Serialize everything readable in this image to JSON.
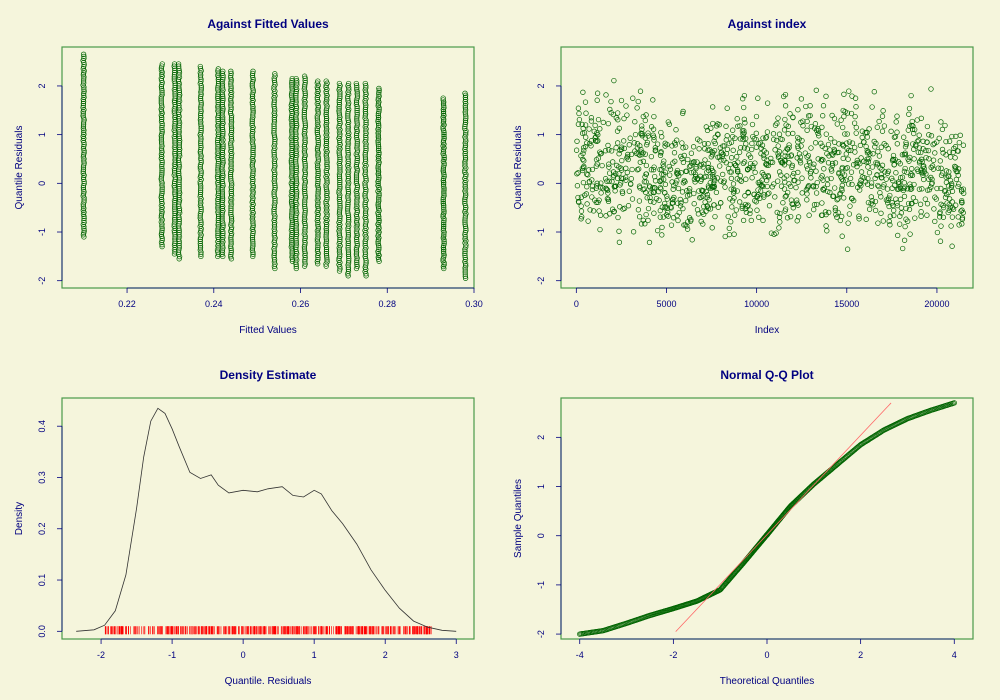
{
  "colors": {
    "background": "#f5f5dc",
    "text": "#000080",
    "frame": "#4a9a4a",
    "points": "#006400",
    "rug": "#ff0000",
    "qqline": "#ff6666",
    "density": "#333333"
  },
  "chart_data": [
    {
      "id": "fitted",
      "type": "scatter",
      "title": "Against Fitted Values",
      "xlabel": "Fitted Values",
      "ylabel": "Quantile Residuals",
      "xlim": [
        0.205,
        0.3
      ],
      "ylim": [
        -2.15,
        2.8
      ],
      "xticks": [
        0.22,
        0.24,
        0.26,
        0.28,
        0.3
      ],
      "xtick_labels": [
        "0.22",
        "0.24",
        "0.26",
        "0.28",
        "0.30"
      ],
      "yticks": [
        -2,
        -1,
        0,
        1,
        2
      ],
      "ytick_labels": [
        "-2",
        "-1",
        "0",
        "1",
        "2"
      ],
      "columns": [
        {
          "x": 0.21,
          "ymin": -1.1,
          "ymax": 2.65
        },
        {
          "x": 0.228,
          "ymin": -1.3,
          "ymax": 2.45
        },
        {
          "x": 0.231,
          "ymin": -1.45,
          "ymax": 2.45
        },
        {
          "x": 0.232,
          "ymin": -1.55,
          "ymax": 2.45
        },
        {
          "x": 0.237,
          "ymin": -1.5,
          "ymax": 2.4
        },
        {
          "x": 0.241,
          "ymin": -1.5,
          "ymax": 2.35
        },
        {
          "x": 0.242,
          "ymin": -1.5,
          "ymax": 2.3
        },
        {
          "x": 0.244,
          "ymin": -1.55,
          "ymax": 2.3
        },
        {
          "x": 0.249,
          "ymin": -1.5,
          "ymax": 2.3
        },
        {
          "x": 0.254,
          "ymin": -1.75,
          "ymax": 2.25
        },
        {
          "x": 0.258,
          "ymin": -1.6,
          "ymax": 2.15
        },
        {
          "x": 0.259,
          "ymin": -1.75,
          "ymax": 2.15
        },
        {
          "x": 0.261,
          "ymin": -1.7,
          "ymax": 2.2
        },
        {
          "x": 0.264,
          "ymin": -1.65,
          "ymax": 2.1
        },
        {
          "x": 0.266,
          "ymin": -1.7,
          "ymax": 2.1
        },
        {
          "x": 0.269,
          "ymin": -1.8,
          "ymax": 2.05
        },
        {
          "x": 0.271,
          "ymin": -1.9,
          "ymax": 2.05
        },
        {
          "x": 0.273,
          "ymin": -1.75,
          "ymax": 2.05
        },
        {
          "x": 0.275,
          "ymin": -1.9,
          "ymax": 2.05
        },
        {
          "x": 0.278,
          "ymin": -1.6,
          "ymax": 1.95
        },
        {
          "x": 0.293,
          "ymin": -1.75,
          "ymax": 1.75
        },
        {
          "x": 0.298,
          "ymin": -1.95,
          "ymax": 1.85
        }
      ]
    },
    {
      "id": "index",
      "type": "scatter",
      "title": "Against  index",
      "xlabel": "Index",
      "ylabel": "Quantile Residuals",
      "xlim": [
        -850,
        22000
      ],
      "ylim": [
        -2.15,
        2.8
      ],
      "xticks": [
        0,
        5000,
        10000,
        15000,
        20000
      ],
      "xtick_labels": [
        "0",
        "5000",
        "10000",
        "15000",
        "20000"
      ],
      "yticks": [
        -2,
        -1,
        0,
        1,
        2
      ],
      "ytick_labels": [
        "-2",
        "-1",
        "0",
        "1",
        "2"
      ],
      "n": 21500,
      "segments": [
        {
          "x0": 0,
          "x1": 4500,
          "ymin": -1.8,
          "ymax": 2.4
        },
        {
          "x0": 4500,
          "x1": 7200,
          "ymin": -1.7,
          "ymax": 1.7
        },
        {
          "x0": 7200,
          "x1": 20000,
          "ymin": -1.6,
          "ymax": 2.3
        },
        {
          "x0": 20000,
          "x1": 21500,
          "ymin": -1.7,
          "ymax": 1.8
        }
      ]
    },
    {
      "id": "density",
      "type": "line",
      "title": "Density Estimate",
      "xlabel": "Quantile. Residuals",
      "ylabel": "Density",
      "xlim": [
        -2.55,
        3.25
      ],
      "ylim": [
        -0.015,
        0.455
      ],
      "xticks": [
        -2,
        -1,
        0,
        1,
        2,
        3
      ],
      "xtick_labels": [
        "-2",
        "-1",
        "0",
        "1",
        "2",
        "3"
      ],
      "yticks": [
        0,
        0.1,
        0.2,
        0.3,
        0.4
      ],
      "ytick_labels": [
        "0.0",
        "0.1",
        "0.2",
        "0.3",
        "0.4"
      ],
      "x": [
        -2.35,
        -2.1,
        -1.95,
        -1.8,
        -1.65,
        -1.5,
        -1.4,
        -1.3,
        -1.2,
        -1.1,
        -1.0,
        -0.9,
        -0.75,
        -0.6,
        -0.45,
        -0.35,
        -0.2,
        0.0,
        0.2,
        0.35,
        0.55,
        0.7,
        0.85,
        1.0,
        1.1,
        1.25,
        1.4,
        1.6,
        1.8,
        2.0,
        2.2,
        2.4,
        2.6,
        2.8,
        3.0
      ],
      "y": [
        0.0,
        0.003,
        0.012,
        0.04,
        0.11,
        0.24,
        0.34,
        0.41,
        0.435,
        0.425,
        0.395,
        0.36,
        0.31,
        0.298,
        0.305,
        0.285,
        0.27,
        0.275,
        0.272,
        0.278,
        0.282,
        0.265,
        0.262,
        0.275,
        0.268,
        0.235,
        0.21,
        0.17,
        0.12,
        0.08,
        0.045,
        0.02,
        0.008,
        0.002,
        0.0
      ],
      "rug": {
        "min": -1.95,
        "max": 2.65
      }
    },
    {
      "id": "qq",
      "type": "scatter",
      "title": "Normal Q-Q Plot",
      "xlabel": "Theoretical Quantiles",
      "ylabel": "Sample Quantiles",
      "xlim": [
        -4.4,
        4.4
      ],
      "ylim": [
        -2.1,
        2.8
      ],
      "xticks": [
        -4,
        -2,
        0,
        2,
        4
      ],
      "xtick_labels": [
        "-4",
        "-2",
        "0",
        "2",
        "4"
      ],
      "yticks": [
        -2,
        -1,
        0,
        1,
        2
      ],
      "ytick_labels": [
        "-2",
        "-1",
        "0",
        "1",
        "2"
      ],
      "curve": {
        "x": [
          -4.0,
          -3.5,
          -3.0,
          -2.5,
          -2.0,
          -1.5,
          -1.0,
          -0.5,
          0.0,
          0.5,
          1.0,
          1.5,
          2.0,
          2.5,
          3.0,
          3.5,
          4.0
        ],
        "y": [
          -2.0,
          -1.93,
          -1.78,
          -1.62,
          -1.48,
          -1.33,
          -1.1,
          -0.55,
          0.02,
          0.6,
          1.05,
          1.45,
          1.85,
          2.15,
          2.38,
          2.55,
          2.7
        ]
      },
      "line": {
        "x": [
          -1.95,
          2.65
        ],
        "y": [
          -1.95,
          2.7
        ]
      }
    }
  ]
}
